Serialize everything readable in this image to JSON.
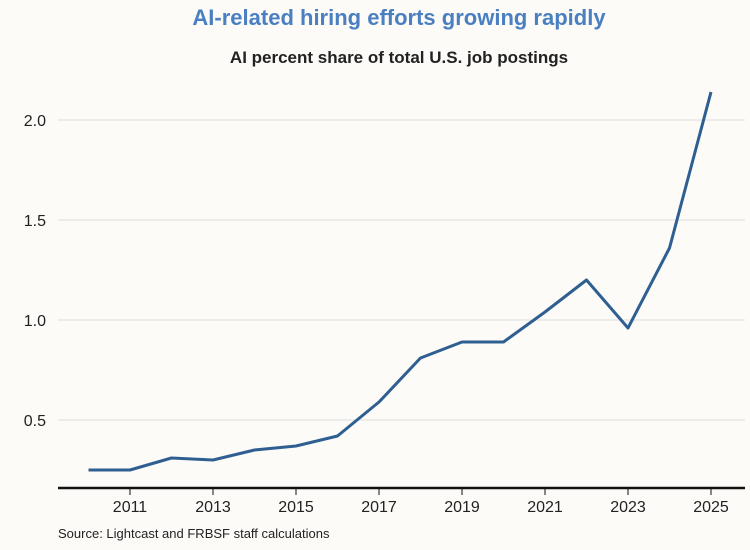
{
  "chart_data": {
    "type": "line",
    "title": "AI-related hiring efforts growing rapidly",
    "subtitle": "AI percent share of total U.S. job postings",
    "source": "Source: Lightcast and FRBSF staff calculations",
    "x": [
      2010,
      2011,
      2012,
      2013,
      2014,
      2015,
      2016,
      2017,
      2018,
      2019,
      2020,
      2021,
      2022,
      2023,
      2024,
      2025
    ],
    "series": [
      {
        "values": [
          0.25,
          0.25,
          0.31,
          0.3,
          0.35,
          0.37,
          0.42,
          0.59,
          0.81,
          0.89,
          0.89,
          1.04,
          1.2,
          0.96,
          1.36,
          2.14
        ],
        "color": "#2f5f91"
      }
    ],
    "xticks": [
      "2011",
      "2013",
      "2015",
      "2017",
      "2019",
      "2021",
      "2023",
      "2025"
    ],
    "yticks": [
      "0.5",
      "1.0",
      "1.5",
      "2.0"
    ],
    "xlim": [
      2009.2,
      2025.8
    ],
    "ylim": [
      0.16,
      2.3
    ],
    "grid": "horizontal",
    "legend": "none"
  }
}
